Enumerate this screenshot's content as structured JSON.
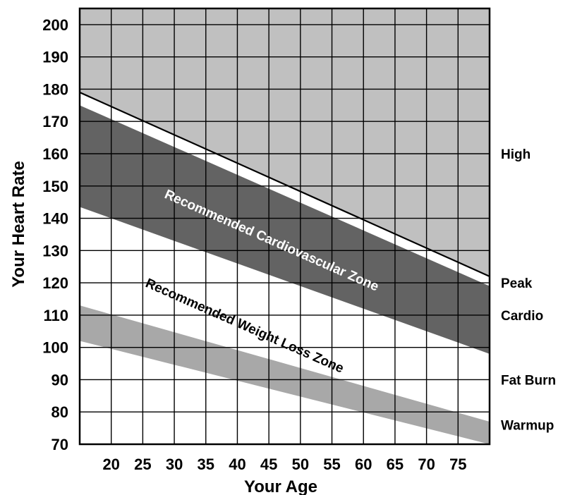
{
  "chart_data": {
    "type": "area",
    "title": "",
    "xlabel": "Your Age",
    "ylabel": "Your Heart Rate",
    "xlim": [
      15,
      80
    ],
    "ylim": [
      70,
      205
    ],
    "x_ticks": [
      "20",
      "25",
      "30",
      "35",
      "40",
      "45",
      "50",
      "55",
      "60",
      "65",
      "70",
      "75"
    ],
    "y_ticks": [
      "70",
      "80",
      "90",
      "100",
      "110",
      "120",
      "130",
      "140",
      "150",
      "160",
      "170",
      "180",
      "190",
      "200"
    ],
    "grid": true,
    "max_heart_rate_line": {
      "x": [
        15,
        80
      ],
      "y": [
        179,
        122
      ]
    },
    "bands": [
      {
        "name": "High",
        "color": "#c0c0c0",
        "lower": {
          "x": [
            15,
            80
          ],
          "y": [
            179,
            122
          ]
        }
      },
      {
        "name": "Recommended Cardiovascular Zone",
        "color": "#636363",
        "upper": {
          "x": [
            15,
            80
          ],
          "y": [
            175,
            119
          ]
        },
        "lower": {
          "x": [
            15,
            80
          ],
          "y": [
            143.5,
            98
          ]
        }
      },
      {
        "name": "Recommended Weight Loss Zone",
        "color": "#a8a8a8",
        "upper": {
          "x": [
            15,
            80
          ],
          "y": [
            113,
            77
          ]
        },
        "lower": {
          "x": [
            15,
            80
          ],
          "y": [
            102,
            70
          ]
        }
      }
    ],
    "zone_labels": [
      "High",
      "Peak",
      "Cardio",
      "Fat Burn",
      "Warmup"
    ],
    "band_texts": {
      "cardio": "Recommended Cardiovascular Zone",
      "weight_loss": "Recommended Weight Loss Zone"
    }
  }
}
